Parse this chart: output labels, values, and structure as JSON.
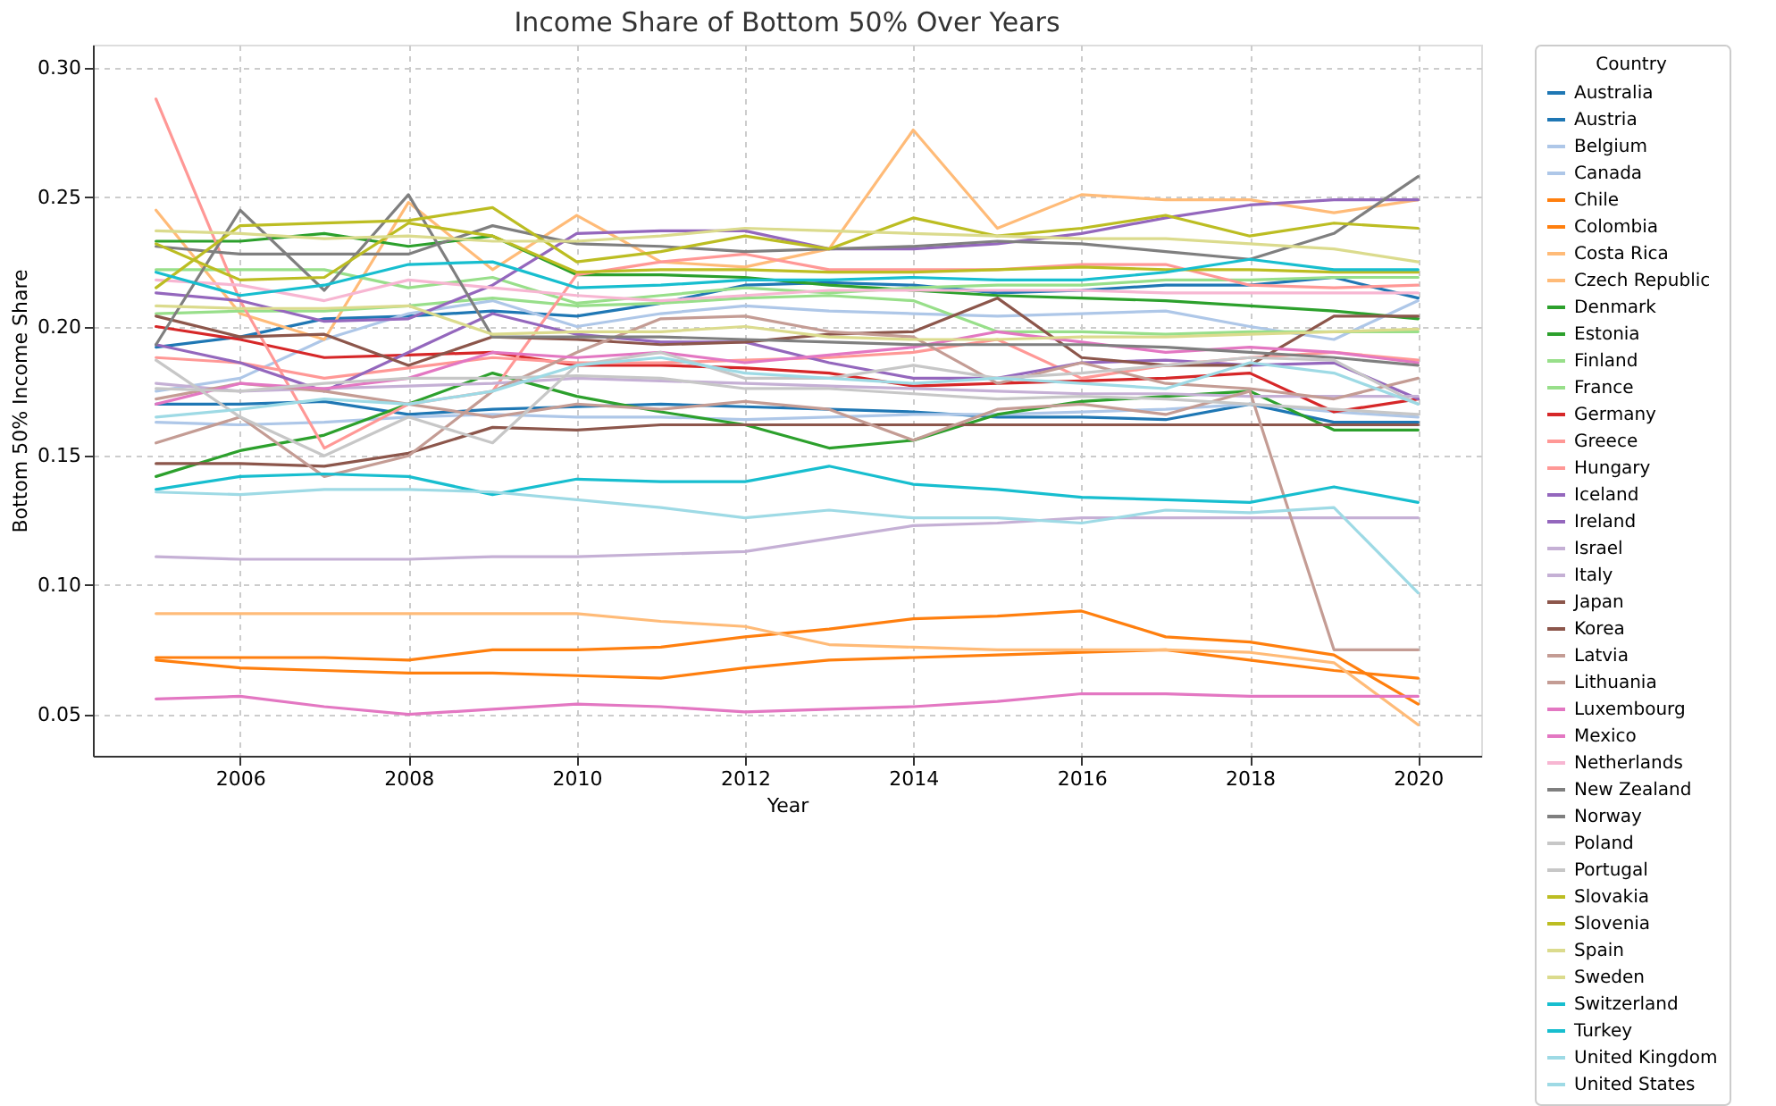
{
  "chart_data": {
    "type": "line",
    "title": "Income Share of Bottom 50% Over Years",
    "xlabel": "Year",
    "ylabel": "Bottom 50% Income Share",
    "legend_title": "Country",
    "x": [
      2005,
      2006,
      2007,
      2008,
      2009,
      2010,
      2011,
      2012,
      2013,
      2014,
      2015,
      2016,
      2017,
      2018,
      2019,
      2020
    ],
    "xlim": [
      2004.25,
      2020.75
    ],
    "xticks": [
      2006,
      2008,
      2010,
      2012,
      2014,
      2016,
      2018,
      2020
    ],
    "ylim": [
      0.034,
      0.309
    ],
    "yticks": [
      {
        "value": 0.05,
        "label": "0.05"
      },
      {
        "value": 0.1,
        "label": "0.10"
      },
      {
        "value": 0.15,
        "label": "0.15"
      },
      {
        "value": 0.2,
        "label": "0.20"
      },
      {
        "value": 0.25,
        "label": "0.25"
      },
      {
        "value": 0.3,
        "label": "0.30"
      }
    ],
    "grid": true,
    "legend": "right",
    "line_style": "solid",
    "marker": "none",
    "series": [
      {
        "name": "Australia",
        "color": "#1f77b4",
        "values": [
          0.17,
          0.17,
          0.171,
          0.166,
          0.168,
          0.169,
          0.17,
          0.169,
          0.168,
          0.167,
          0.165,
          0.165,
          0.164,
          0.17,
          0.163,
          0.163
        ]
      },
      {
        "name": "Austria",
        "color": "#1f77b4",
        "values": [
          0.192,
          0.196,
          0.203,
          0.204,
          0.206,
          0.204,
          0.209,
          0.216,
          0.217,
          0.216,
          0.213,
          0.214,
          0.216,
          0.216,
          0.219,
          0.211
        ]
      },
      {
        "name": "Belgium",
        "color": "#aec7e8",
        "values": [
          0.175,
          0.18,
          0.195,
          0.205,
          0.21,
          0.2,
          0.205,
          0.208,
          0.206,
          0.205,
          0.204,
          0.205,
          0.206,
          0.2,
          0.195,
          0.21
        ]
      },
      {
        "name": "Canada",
        "color": "#aec7e8",
        "values": [
          0.163,
          0.162,
          0.163,
          0.165,
          0.166,
          0.165,
          0.165,
          0.164,
          0.165,
          0.166,
          0.166,
          0.167,
          0.168,
          0.17,
          0.167,
          0.165
        ]
      },
      {
        "name": "Chile",
        "color": "#ff7f0e",
        "values": [
          0.072,
          0.072,
          0.072,
          0.071,
          0.075,
          0.075,
          0.076,
          0.08,
          0.083,
          0.087,
          0.088,
          0.09,
          0.08,
          0.078,
          0.073,
          0.054
        ]
      },
      {
        "name": "Colombia",
        "color": "#ff7f0e",
        "values": [
          0.071,
          0.068,
          0.067,
          0.066,
          0.066,
          0.065,
          0.064,
          0.068,
          0.071,
          0.072,
          0.073,
          0.074,
          0.075,
          0.071,
          0.067,
          0.064
        ]
      },
      {
        "name": "Costa Rica",
        "color": "#ffbb78",
        "values": [
          0.089,
          0.089,
          0.089,
          0.089,
          0.089,
          0.089,
          0.086,
          0.084,
          0.077,
          0.076,
          0.075,
          0.075,
          0.075,
          0.074,
          0.07,
          0.046
        ]
      },
      {
        "name": "Czech Republic",
        "color": "#ffbb78",
        "values": [
          0.245,
          0.205,
          0.195,
          0.248,
          0.222,
          0.243,
          0.225,
          0.223,
          0.23,
          0.276,
          0.238,
          0.251,
          0.249,
          0.249,
          0.244,
          0.249
        ]
      },
      {
        "name": "Denmark",
        "color": "#2ca02c",
        "values": [
          0.233,
          0.233,
          0.236,
          0.231,
          0.235,
          0.22,
          0.22,
          0.219,
          0.216,
          0.214,
          0.212,
          0.211,
          0.21,
          0.208,
          0.206,
          0.203
        ]
      },
      {
        "name": "Estonia",
        "color": "#2ca02c",
        "values": [
          0.142,
          0.152,
          0.158,
          0.17,
          0.182,
          0.173,
          0.167,
          0.162,
          0.153,
          0.156,
          0.166,
          0.171,
          0.173,
          0.175,
          0.16,
          0.16
        ]
      },
      {
        "name": "Finland",
        "color": "#98df8a",
        "values": [
          0.222,
          0.222,
          0.222,
          0.215,
          0.219,
          0.209,
          0.212,
          0.215,
          0.213,
          0.215,
          0.216,
          0.216,
          0.218,
          0.218,
          0.219,
          0.219
        ]
      },
      {
        "name": "France",
        "color": "#98df8a",
        "values": [
          0.205,
          0.206,
          0.206,
          0.208,
          0.211,
          0.208,
          0.209,
          0.211,
          0.212,
          0.21,
          0.198,
          0.198,
          0.197,
          0.198,
          0.198,
          0.198
        ]
      },
      {
        "name": "Germany",
        "color": "#d62728",
        "values": [
          0.2,
          0.195,
          0.188,
          0.189,
          0.19,
          0.185,
          0.185,
          0.184,
          0.182,
          0.177,
          0.178,
          0.179,
          0.18,
          0.182,
          0.167,
          0.172
        ]
      },
      {
        "name": "Greece",
        "color": "#ff9896",
        "values": [
          0.288,
          0.21,
          0.153,
          0.17,
          0.175,
          0.22,
          0.225,
          0.228,
          0.222,
          0.222,
          0.222,
          0.224,
          0.224,
          0.216,
          0.215,
          0.216
        ]
      },
      {
        "name": "Hungary",
        "color": "#ff9896",
        "values": [
          0.188,
          0.186,
          0.18,
          0.184,
          0.188,
          0.186,
          0.186,
          0.187,
          0.188,
          0.19,
          0.195,
          0.18,
          0.185,
          0.188,
          0.19,
          0.187
        ]
      },
      {
        "name": "Iceland",
        "color": "#9467bd",
        "values": [
          0.213,
          0.21,
          0.202,
          0.203,
          0.216,
          0.236,
          0.237,
          0.237,
          0.23,
          0.23,
          0.232,
          0.236,
          0.242,
          0.247,
          0.249,
          0.249
        ]
      },
      {
        "name": "Ireland",
        "color": "#9467bd",
        "values": [
          0.193,
          0.186,
          0.175,
          0.19,
          0.205,
          0.197,
          0.194,
          0.194,
          0.186,
          0.18,
          0.18,
          0.186,
          0.187,
          0.185,
          0.186,
          0.172
        ]
      },
      {
        "name": "Israel",
        "color": "#c5b0d5",
        "values": [
          0.111,
          0.11,
          0.11,
          0.11,
          0.111,
          0.111,
          0.112,
          0.113,
          0.118,
          0.123,
          0.124,
          0.126,
          0.126,
          0.126,
          0.126,
          0.126
        ]
      },
      {
        "name": "Italy",
        "color": "#c5b0d5",
        "values": [
          0.178,
          0.175,
          0.176,
          0.177,
          0.178,
          0.18,
          0.179,
          0.178,
          0.177,
          0.176,
          0.175,
          0.174,
          0.174,
          0.173,
          0.173,
          0.173
        ]
      },
      {
        "name": "Japan",
        "color": "#8c564b",
        "values": [
          0.147,
          0.147,
          0.146,
          0.151,
          0.161,
          0.16,
          0.162,
          0.162,
          0.162,
          0.162,
          0.162,
          0.162,
          0.162,
          0.162,
          0.162,
          0.162
        ]
      },
      {
        "name": "Korea",
        "color": "#8c564b",
        "values": [
          0.204,
          0.196,
          0.197,
          0.185,
          0.196,
          0.195,
          0.193,
          0.194,
          0.197,
          0.198,
          0.211,
          0.188,
          0.185,
          0.185,
          0.204,
          0.204
        ]
      },
      {
        "name": "Latvia",
        "color": "#c49c94",
        "values": [
          0.172,
          0.178,
          0.175,
          0.17,
          0.165,
          0.17,
          0.168,
          0.171,
          0.168,
          0.156,
          0.168,
          0.17,
          0.166,
          0.175,
          0.075,
          0.075
        ]
      },
      {
        "name": "Lithuania",
        "color": "#c49c94",
        "values": [
          0.155,
          0.165,
          0.142,
          0.15,
          0.175,
          0.19,
          0.203,
          0.204,
          0.198,
          0.196,
          0.178,
          0.186,
          0.178,
          0.176,
          0.172,
          0.18
        ]
      },
      {
        "name": "Luxembourg",
        "color": "#e377c2",
        "values": [
          0.17,
          0.178,
          0.176,
          0.18,
          0.19,
          0.188,
          0.19,
          0.186,
          0.189,
          0.192,
          0.198,
          0.194,
          0.19,
          0.192,
          0.19,
          0.186
        ]
      },
      {
        "name": "Mexico",
        "color": "#e377c2",
        "values": [
          0.056,
          0.057,
          0.053,
          0.05,
          0.052,
          0.054,
          0.053,
          0.051,
          0.052,
          0.053,
          0.055,
          0.058,
          0.058,
          0.057,
          0.057,
          0.057
        ]
      },
      {
        "name": "Netherlands",
        "color": "#f7b6d2",
        "values": [
          0.218,
          0.216,
          0.21,
          0.218,
          0.215,
          0.212,
          0.21,
          0.212,
          0.214,
          0.214,
          0.214,
          0.214,
          0.213,
          0.213,
          0.213,
          0.213
        ]
      },
      {
        "name": "New Zealand",
        "color": "#7f7f7f",
        "values": [
          0.231,
          0.228,
          0.228,
          0.228,
          0.239,
          0.232,
          0.231,
          0.229,
          0.23,
          0.231,
          0.233,
          0.232,
          0.229,
          0.226,
          0.236,
          0.258
        ]
      },
      {
        "name": "Norway",
        "color": "#7f7f7f",
        "values": [
          0.193,
          0.245,
          0.214,
          0.251,
          0.196,
          0.196,
          0.196,
          0.195,
          0.194,
          0.193,
          0.193,
          0.193,
          0.192,
          0.19,
          0.188,
          0.185
        ]
      },
      {
        "name": "Poland",
        "color": "#c7c7c7",
        "values": [
          0.187,
          0.165,
          0.15,
          0.165,
          0.155,
          0.185,
          0.19,
          0.18,
          0.18,
          0.185,
          0.18,
          0.182,
          0.185,
          0.188,
          0.187,
          0.17
        ]
      },
      {
        "name": "Portugal",
        "color": "#c7c7c7",
        "values": [
          0.176,
          0.175,
          0.178,
          0.18,
          0.18,
          0.181,
          0.18,
          0.176,
          0.176,
          0.174,
          0.172,
          0.173,
          0.172,
          0.17,
          0.168,
          0.166
        ]
      },
      {
        "name": "Slovakia",
        "color": "#bcbd22",
        "values": [
          0.215,
          0.239,
          0.24,
          0.241,
          0.246,
          0.225,
          0.229,
          0.235,
          0.23,
          0.242,
          0.235,
          0.238,
          0.243,
          0.235,
          0.24,
          0.238
        ]
      },
      {
        "name": "Slovenia",
        "color": "#bcbd22",
        "values": [
          0.232,
          0.218,
          0.219,
          0.24,
          0.235,
          0.221,
          0.222,
          0.222,
          0.221,
          0.221,
          0.222,
          0.223,
          0.222,
          0.222,
          0.221,
          0.221
        ]
      },
      {
        "name": "Spain",
        "color": "#dbdb8d",
        "values": [
          0.208,
          0.207,
          0.207,
          0.208,
          0.197,
          0.198,
          0.198,
          0.2,
          0.196,
          0.195,
          0.195,
          0.196,
          0.196,
          0.197,
          0.198,
          0.199
        ]
      },
      {
        "name": "Sweden",
        "color": "#dbdb8d",
        "values": [
          0.237,
          0.236,
          0.234,
          0.235,
          0.233,
          0.233,
          0.235,
          0.238,
          0.237,
          0.236,
          0.235,
          0.234,
          0.234,
          0.232,
          0.23,
          0.225
        ]
      },
      {
        "name": "Switzerland",
        "color": "#17becf",
        "values": [
          0.221,
          0.212,
          0.216,
          0.224,
          0.225,
          0.215,
          0.216,
          0.218,
          0.218,
          0.219,
          0.218,
          0.218,
          0.221,
          0.226,
          0.222,
          0.222
        ]
      },
      {
        "name": "Turkey",
        "color": "#17becf",
        "values": [
          0.137,
          0.142,
          0.143,
          0.142,
          0.135,
          0.141,
          0.14,
          0.14,
          0.146,
          0.139,
          0.137,
          0.134,
          0.133,
          0.132,
          0.138,
          0.132
        ]
      },
      {
        "name": "United Kingdom",
        "color": "#9edae5",
        "values": [
          0.136,
          0.135,
          0.137,
          0.137,
          0.136,
          0.133,
          0.13,
          0.126,
          0.129,
          0.126,
          0.126,
          0.124,
          0.129,
          0.128,
          0.13,
          0.097
        ]
      },
      {
        "name": "United States",
        "color": "#9edae5",
        "values": [
          0.165,
          0.168,
          0.172,
          0.17,
          0.175,
          0.185,
          0.188,
          0.182,
          0.18,
          0.178,
          0.18,
          0.178,
          0.176,
          0.186,
          0.182,
          0.17
        ]
      }
    ]
  }
}
